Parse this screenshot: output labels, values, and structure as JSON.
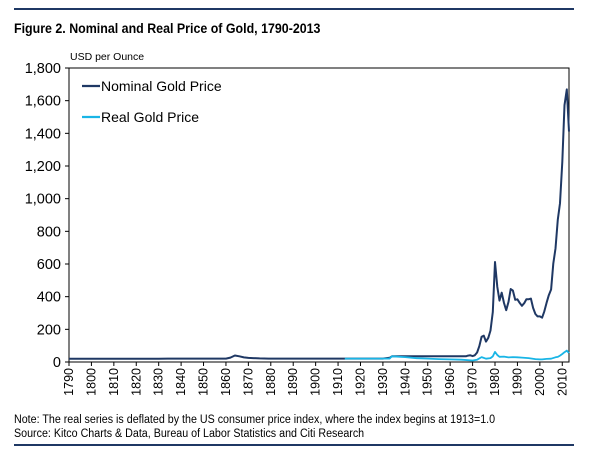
{
  "figure": {
    "title": "Figure 2. Nominal and Real Price of Gold, 1790-2013",
    "note": "Note: The real series is deflated by the US consumer price index, where the index begins at 1913=1.0",
    "source": "Source: Kitco Charts & Data, Bureau of Labor Statistics and Citi Research"
  },
  "colors": {
    "nominal": "#1f3864",
    "real": "#19b5e6",
    "rule": "#1f3864"
  },
  "chart_data": {
    "type": "line",
    "title": "Figure 2. Nominal and Real Price of Gold, 1790-2013",
    "ylabel": "USD per Ounce",
    "xlabel": "",
    "xlim": [
      1790,
      2013
    ],
    "ylim": [
      0,
      1800
    ],
    "yticks": [
      0,
      200,
      400,
      600,
      800,
      1000,
      1200,
      1400,
      1600,
      1800
    ],
    "ytick_labels": [
      "0",
      "200",
      "400",
      "600",
      "800",
      "1,000",
      "1,200",
      "1,400",
      "1,600",
      "1,800"
    ],
    "xticks": [
      1790,
      1800,
      1810,
      1820,
      1830,
      1840,
      1850,
      1860,
      1870,
      1880,
      1890,
      1900,
      1910,
      1920,
      1930,
      1940,
      1950,
      1960,
      1970,
      1980,
      1990,
      2000,
      2010
    ],
    "xtick_labels": [
      "1790",
      "1800",
      "1810",
      "1820",
      "1830",
      "1840",
      "1850",
      "1860",
      "1870",
      "1880",
      "1890",
      "1900",
      "1910",
      "1920",
      "1930",
      "1940",
      "1950",
      "1960",
      "1970",
      "1980",
      "1990",
      "2000",
      "2010"
    ],
    "legend_position": "top-left",
    "grid": false,
    "series": [
      {
        "name": "Nominal Gold Price",
        "x": [
          1790,
          1800,
          1810,
          1820,
          1830,
          1834,
          1840,
          1850,
          1860,
          1862,
          1864,
          1866,
          1868,
          1870,
          1875,
          1879,
          1890,
          1900,
          1910,
          1920,
          1930,
          1933,
          1934,
          1940,
          1950,
          1960,
          1967,
          1968,
          1969,
          1970,
          1971,
          1972,
          1973,
          1974,
          1975,
          1976,
          1977,
          1978,
          1979,
          1980,
          1981,
          1982,
          1983,
          1984,
          1985,
          1986,
          1987,
          1988,
          1989,
          1990,
          1991,
          1992,
          1993,
          1994,
          1995,
          1996,
          1997,
          1998,
          1999,
          2000,
          2001,
          2002,
          2003,
          2004,
          2005,
          2006,
          2007,
          2008,
          2009,
          2010,
          2011,
          2012,
          2013
        ],
        "y": [
          19.4,
          19.4,
          19.4,
          19.4,
          19.4,
          20.7,
          20.7,
          20.7,
          20.7,
          27,
          40,
          35,
          28,
          25,
          22,
          20.7,
          20.7,
          20.7,
          20.7,
          20.7,
          20.7,
          26,
          35,
          35,
          35,
          35,
          35,
          39,
          41,
          36,
          41,
          58,
          97,
          154,
          161,
          125,
          148,
          193,
          306,
          612,
          460,
          376,
          424,
          361,
          317,
          368,
          447,
          437,
          381,
          384,
          362,
          344,
          360,
          384,
          384,
          388,
          331,
          294,
          279,
          279,
          271,
          310,
          363,
          409,
          444,
          603,
          695,
          872,
          972,
          1225,
          1572,
          1669,
          1411
        ]
      },
      {
        "name": "Real Gold Price",
        "x": [
          1913,
          1920,
          1930,
          1933,
          1934,
          1940,
          1945,
          1950,
          1955,
          1960,
          1965,
          1970,
          1972,
          1974,
          1976,
          1978,
          1979,
          1980,
          1981,
          1982,
          1984,
          1986,
          1988,
          1990,
          1992,
          1995,
          1998,
          2000,
          2001,
          2003,
          2005,
          2007,
          2008,
          2009,
          2010,
          2011,
          2012,
          2013
        ],
        "y": [
          20.7,
          20.7,
          20.7,
          20.7,
          35,
          30,
          23,
          21,
          18,
          16,
          14,
          9,
          14,
          30,
          20,
          24,
          34,
          62,
          43,
          32,
          33,
          28,
          30,
          29,
          27,
          24,
          18,
          16,
          16,
          19,
          20,
          29,
          31,
          39,
          49,
          60,
          70,
          55
        ]
      }
    ]
  }
}
